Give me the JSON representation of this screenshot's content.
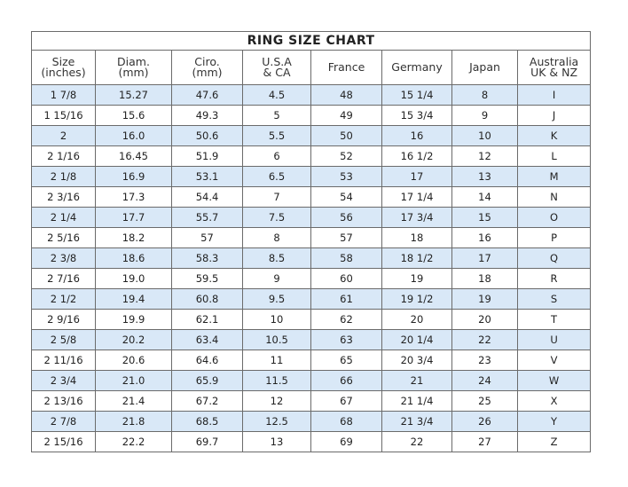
{
  "title": "RING SIZE  CHART",
  "columns": [
    {
      "line1": "Size",
      "line2": "(inches)"
    },
    {
      "line1": "Diam.",
      "line2": "(mm)"
    },
    {
      "line1": "Ciro.",
      "line2": "(mm)"
    },
    {
      "line1": "U.S.A",
      "line2": "& CA"
    },
    {
      "line1": "France",
      "line2": ""
    },
    {
      "line1": "Germany",
      "line2": ""
    },
    {
      "line1": "Japan",
      "line2": ""
    },
    {
      "line1": "Australia",
      "line2": "UK & NZ"
    }
  ],
  "rows": [
    [
      "1 7/8",
      "15.27",
      "47.6",
      "4.5",
      "48",
      "15 1/4",
      "8",
      "I"
    ],
    [
      "1 15/16",
      "15.6",
      "49.3",
      "5",
      "49",
      "15 3/4",
      "9",
      "J"
    ],
    [
      "2",
      "16.0",
      "50.6",
      "5.5",
      "50",
      "16",
      "10",
      "K"
    ],
    [
      "2 1/16",
      "16.45",
      "51.9",
      "6",
      "52",
      "16 1/2",
      "12",
      "L"
    ],
    [
      "2 1/8",
      "16.9",
      "53.1",
      "6.5",
      "53",
      "17",
      "13",
      "M"
    ],
    [
      "2 3/16",
      "17.3",
      "54.4",
      "7",
      "54",
      "17 1/4",
      "14",
      "N"
    ],
    [
      "2 1/4",
      "17.7",
      "55.7",
      "7.5",
      "56",
      "17 3/4",
      "15",
      "O"
    ],
    [
      "2 5/16",
      "18.2",
      "57",
      "8",
      "57",
      "18",
      "16",
      "P"
    ],
    [
      "2 3/8",
      "18.6",
      "58.3",
      "8.5",
      "58",
      "18 1/2",
      "17",
      "Q"
    ],
    [
      "2 7/16",
      "19.0",
      "59.5",
      "9",
      "60",
      "19",
      "18",
      "R"
    ],
    [
      "2 1/2",
      "19.4",
      "60.8",
      "9.5",
      "61",
      "19 1/2",
      "19",
      "S"
    ],
    [
      "2 9/16",
      "19.9",
      "62.1",
      "10",
      "62",
      "20",
      "20",
      "T"
    ],
    [
      "2 5/8",
      "20.2",
      "63.4",
      "10.5",
      "63",
      "20 1/4",
      "22",
      "U"
    ],
    [
      "2 11/16",
      "20.6",
      "64.6",
      "11",
      "65",
      "20 3/4",
      "23",
      "V"
    ],
    [
      "2 3/4",
      "21.0",
      "65.9",
      "11.5",
      "66",
      "21",
      "24",
      "W"
    ],
    [
      "2 13/16",
      "21.4",
      "67.2",
      "12",
      "67",
      "21 1/4",
      "25",
      "X"
    ],
    [
      "2 7/8",
      "21.8",
      "68.5",
      "12.5",
      "68",
      "21 3/4",
      "26",
      "Y"
    ],
    [
      "2 15/16",
      "22.2",
      "69.7",
      "13",
      "69",
      "22",
      "27",
      "Z"
    ]
  ],
  "colors": {
    "alt_row": "#d9e8f7",
    "border": "#6b6b6b"
  }
}
